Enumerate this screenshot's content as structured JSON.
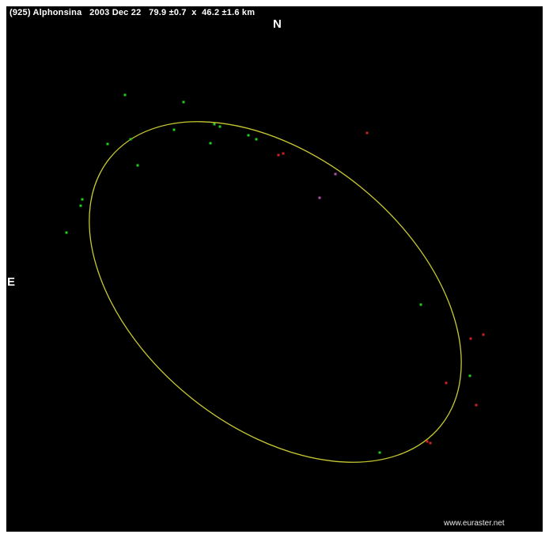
{
  "title": "(925) Alphonsina   2003 Dec 22   79.9 ±0.7  x  46.2 ±1.6 km",
  "directions": {
    "north": "N",
    "east": "E"
  },
  "credit": "www.euraster.net",
  "colors": {
    "background": "#000000",
    "ellipse": "#c8c832",
    "positive_chord": "#22cc22",
    "negative_chord": "#cc2222",
    "uncertain_chord": "#aa55aa"
  },
  "fit": {
    "major_axis_km": 79.9,
    "major_err_km": 0.7,
    "minor_axis_km": 46.2,
    "minor_err_km": 1.6
  }
}
